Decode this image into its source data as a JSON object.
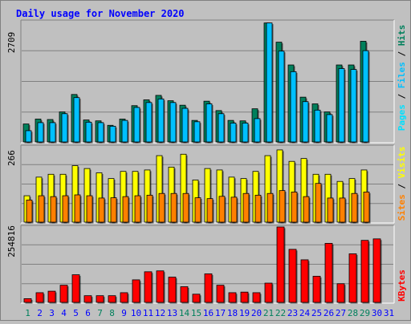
{
  "colors": {
    "hits": "#00805c",
    "files": "#00c0ff",
    "pages": "#00e0ff",
    "visits": "#ffff00",
    "sites": "#ff8000",
    "kbytes": "#ff0000",
    "weekday": "#0000ff",
    "weekend": "#00805c"
  },
  "chart_data": [
    {
      "type": "bar",
      "title": "Daily usage for November 2020",
      "categories": [
        "1",
        "2",
        "3",
        "4",
        "5",
        "6",
        "7",
        "8",
        "9",
        "10",
        "11",
        "12",
        "13",
        "14",
        "15",
        "16",
        "17",
        "18",
        "19",
        "20",
        "21",
        "22",
        "23",
        "24",
        "25",
        "26",
        "27",
        "28",
        "29",
        "30",
        "31"
      ],
      "weekend_days": [
        "1",
        "7",
        "8",
        "14",
        "15",
        "21",
        "22",
        "28",
        "29"
      ],
      "ylabel_parts": [
        "Pages",
        "Files",
        "Hits"
      ],
      "ymax_label": "2709",
      "ylim": [
        0,
        2709
      ],
      "series": [
        {
          "name": "Hits",
          "values": [
            420,
            530,
            520,
            690,
            1080,
            510,
            490,
            390,
            530,
            830,
            960,
            1060,
            940,
            840,
            500,
            930,
            720,
            500,
            490,
            760,
            2680,
            2250,
            1740,
            1020,
            870,
            690,
            1740,
            1740,
            2270,
            0,
            0
          ]
        },
        {
          "name": "Files",
          "values": [
            270,
            450,
            450,
            650,
            1010,
            460,
            450,
            370,
            500,
            790,
            900,
            980,
            900,
            770,
            470,
            870,
            650,
            440,
            440,
            540,
            2680,
            2050,
            1590,
            920,
            730,
            630,
            1660,
            1640,
            2060,
            0,
            0
          ]
        },
        {
          "name": "Pages",
          "values": [
            0,
            0,
            0,
            0,
            0,
            0,
            0,
            0,
            0,
            0,
            0,
            0,
            0,
            0,
            0,
            0,
            0,
            0,
            0,
            0,
            0,
            0,
            0,
            0,
            0,
            0,
            0,
            0,
            0,
            0,
            0
          ]
        }
      ]
    },
    {
      "type": "bar",
      "ylabel_parts": [
        "Sites",
        "Visits"
      ],
      "ymax_label": "266",
      "ylim": [
        0,
        266
      ],
      "series": [
        {
          "name": "Visits",
          "values": [
            95,
            160,
            170,
            170,
            200,
            190,
            175,
            155,
            180,
            180,
            185,
            235,
            195,
            240,
            150,
            190,
            185,
            160,
            155,
            180,
            235,
            255,
            215,
            225,
            170,
            170,
            145,
            155,
            185,
            0,
            0
          ]
        },
        {
          "name": "Sites",
          "values": [
            80,
            95,
            92,
            95,
            98,
            95,
            87,
            88,
            92,
            95,
            97,
            103,
            103,
            103,
            88,
            85,
            93,
            90,
            103,
            97,
            103,
            113,
            108,
            92,
            138,
            87,
            87,
            103,
            108,
            0,
            0
          ]
        }
      ]
    },
    {
      "type": "bar",
      "ylabel_parts": [
        "KBytes"
      ],
      "ymax_label": "254816",
      "ylim": [
        0,
        254816
      ],
      "series": [
        {
          "name": "KBytes",
          "values": [
            15000,
            35000,
            40000,
            60000,
            95000,
            25000,
            25000,
            25000,
            35000,
            78000,
            105000,
            108000,
            87000,
            55000,
            30000,
            98000,
            60000,
            35000,
            37000,
            35000,
            67000,
            260000,
            180000,
            145000,
            90000,
            200000,
            65000,
            165000,
            210000,
            215000,
            0
          ]
        }
      ]
    }
  ]
}
